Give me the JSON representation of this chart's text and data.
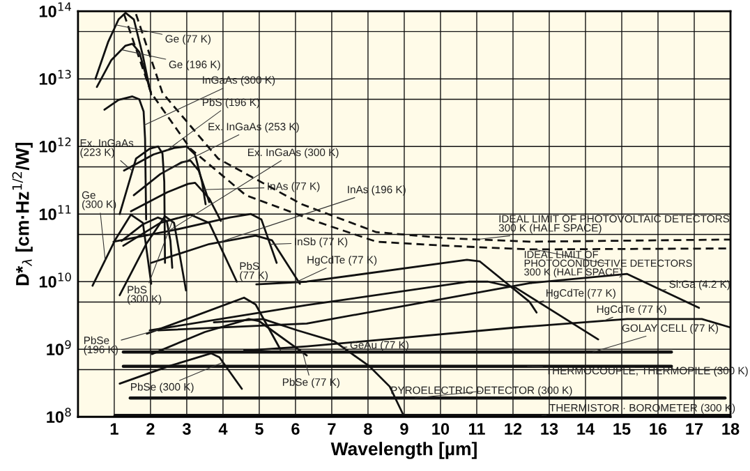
{
  "chart_data": {
    "type": "line",
    "xlabel": "Wavelength [µm]",
    "ylabel": "D*$_{λ}$ [cm·Hz$^{1/2}$/W]",
    "log": "y",
    "grid": true,
    "legend": false,
    "marker": "none",
    "xlim": [
      0,
      18
    ],
    "ylim": [
      100000000.0,
      100000000000000.0
    ],
    "xticks": [
      1,
      2,
      3,
      4,
      5,
      6,
      7,
      8,
      9,
      10,
      11,
      12,
      13,
      14,
      15,
      16,
      17,
      18
    ],
    "yticks": [
      {
        "value": 100000000.0,
        "label": "10$^{8}$"
      },
      {
        "value": 500000000.0,
        "label": null
      },
      {
        "value": 1000000000.0,
        "label": "10$^{9}$"
      },
      {
        "value": 5000000000.0,
        "label": null
      },
      {
        "value": 10000000000.0,
        "label": "10$^{10}$"
      },
      {
        "value": 50000000000.0,
        "label": null
      },
      {
        "value": 100000000000.0,
        "label": "10$^{11}$"
      },
      {
        "value": 500000000000.0,
        "label": null
      },
      {
        "value": 1000000000000.0,
        "label": "10$^{12}$"
      },
      {
        "value": 5000000000000.0,
        "label": null
      },
      {
        "value": 10000000000000.0,
        "label": "10$^{13}$"
      },
      {
        "value": 50000000000000.0,
        "label": null
      },
      {
        "value": 100000000000000.0,
        "label": "10$^{14}$"
      }
    ],
    "series": [
      {
        "name": "Ge (77 K)",
        "color": "#111111",
        "x": [
          0.48,
          0.83,
          1.12,
          1.31,
          1.54,
          1.79,
          1.98
        ],
        "values": [
          10000000000000.0,
          35000000000000.0,
          76000000000000.0,
          95000000000000.0,
          76000000000000.0,
          22000000000000.0,
          7100000000000.0
        ]
      },
      {
        "name": "Ge (196 K)",
        "color": "#111111",
        "x": [
          0.52,
          0.92,
          1.31,
          1.5,
          1.69,
          1.88,
          2.02
        ],
        "values": [
          7600000000000.0,
          19000000000000.0,
          31000000000000.0,
          33000000000000.0,
          25000000000000.0,
          11000000000000.0,
          5900000000000.0
        ]
      },
      {
        "name": "InGaAs (300 K)",
        "color": "#111111",
        "x": [
          0.73,
          1.12,
          1.5,
          1.69,
          1.81,
          1.85,
          1.88
        ],
        "values": [
          3500000000000.0,
          4900000000000.0,
          5500000000000.0,
          5000000000000.0,
          3300000000000.0,
          1300000000000.0,
          83000000000.0
        ]
      },
      {
        "name": "PbS (196 K)",
        "color": "#111111",
        "x": [
          1.27,
          2.08,
          2.65,
          3.0,
          3.23,
          3.42,
          3.52
        ],
        "values": [
          440000000000.0,
          760000000000.0,
          950000000000.0,
          1000000000000.0,
          760000000000.0,
          300000000000.0,
          140000000000.0
        ]
      },
      {
        "name": "Ex. InGaAs\n(223 K)",
        "color": "#111111",
        "x": [
          1.15,
          1.6,
          1.98,
          2.21,
          2.33,
          2.38,
          2.4
        ],
        "values": [
          100000000000.0,
          660000000000.0,
          930000000000.0,
          1000000000000.0,
          790000000000.0,
          300000000000.0,
          19000000000.0
        ]
      },
      {
        "name": "Ex. InGaAs (253 K)",
        "color": "#111111",
        "x": [
          1.54,
          2.27,
          2.85,
          3.1,
          3.33,
          3.62
        ],
        "values": [
          190000000000.0,
          390000000000.0,
          580000000000.0,
          620000000000.0,
          440000000000.0,
          150000000000.0
        ]
      },
      {
        "name": "Ex. InGaAs (300 K)",
        "color": "#111111",
        "x": [
          1.2,
          1.8,
          2.2,
          2.45,
          2.55,
          2.6
        ],
        "values": [
          40000000000.0,
          71000000000.0,
          89000000000.0,
          79000000000.0,
          40000000000.0,
          16000000000.0
        ]
      },
      {
        "name": "Ge\n(300 K)",
        "color": "#111111",
        "x": [
          0.4,
          1.02,
          1.46,
          1.79,
          2.02
        ],
        "values": [
          8700000000.0,
          41000000000.0,
          98000000000.0,
          74000000000.0,
          9300000000.0
        ]
      },
      {
        "name": "InAs (77 K)",
        "color": "#111111",
        "x": [
          1.46,
          2.46,
          3.04,
          3.23,
          3.62,
          3.94
        ],
        "values": [
          110000000000.0,
          210000000000.0,
          280000000000.0,
          290000000000.0,
          170000000000.0,
          79000000000.0
        ]
      },
      {
        "name": "InAs (196 K)",
        "color": "#111111",
        "x": [
          2.02,
          3.62,
          4.9,
          5.35,
          6.12
        ],
        "values": [
          19000000000.0,
          36000000000.0,
          48000000000.0,
          41000000000.0,
          9300000000.0
        ]
      },
      {
        "name": "InSb (77 K)",
        "color": "#111111",
        "x": [
          0.98,
          2.65,
          4.19,
          4.77,
          5.06,
          5.48
        ],
        "values": [
          39000000000.0,
          58000000000.0,
          89000000000.0,
          100000000000.0,
          83000000000.0,
          19000000000.0
        ]
      },
      {
        "name": "PbS\n(300 K)",
        "color": "#111111",
        "x": [
          1.15,
          1.88,
          2.4,
          2.65,
          2.98
        ],
        "values": [
          6300000000.0,
          36000000000.0,
          93000000000.0,
          74000000000.0,
          7400000000.0
        ]
      },
      {
        "name": "PbS\n(77 K)",
        "color": "#111111",
        "x": [
          1.25,
          2.27,
          3.1,
          3.62,
          4.38
        ],
        "values": [
          34000000000.0,
          74000000000.0,
          98000000000.0,
          74000000000.0,
          10000000000.0
        ]
      },
      {
        "name": "HgCdTe (77 K)",
        "color": "#111111",
        "x": [
          4.92,
          6.31,
          10.73,
          11.08,
          12.46,
          12.65
        ],
        "values": [
          9100000000.0,
          10000000000.0,
          21000000000.0,
          20000000000.0,
          5000000000.0,
          3500000000.0
        ]
      },
      {
        "name": "HgCdTe (77 K)",
        "color": "#111111",
        "x": [
          1.98,
          6.31,
          10.79,
          11.31,
          12.08,
          14.35
        ],
        "values": [
          1900000000.0,
          4500000000.0,
          10000000000.0,
          10000000000.0,
          8100000000.0,
          1400000000.0
        ]
      },
      {
        "name": "Si:Ga (4.2 K)",
        "color": "#111111",
        "x": [
          2.21,
          6.31,
          12.46,
          15.15,
          17.13
        ],
        "values": [
          1900000000.0,
          2400000000.0,
          9500000000.0,
          13000000000.0,
          4100000000.0
        ]
      },
      {
        "name": "HgCdTe (77 K)",
        "color": "#111111",
        "x": [
          4.58,
          6.31,
          12.08,
          15.15,
          17.21,
          18.0
        ],
        "values": [
          950000000.0,
          1100000000.0,
          2100000000.0,
          2800000000.0,
          2800000000.0,
          2100000000.0
        ]
      },
      {
        "name": "GeAu (77 K)",
        "color": "#111111",
        "x": [
          3.75,
          5.1,
          6.06,
          7.08,
          8.04,
          8.6,
          9.0
        ],
        "values": [
          2500000000.0,
          2800000000.0,
          1900000000.0,
          1300000000.0,
          560000000.0,
          280000000.0,
          100000000.0
        ]
      },
      {
        "name": "PbSe\n(196 K)",
        "color": "#111111",
        "x": [
          1.9,
          3.0,
          4.58,
          4.9,
          5.58
        ],
        "values": [
          1700000000.0,
          2800000000.0,
          5800000000.0,
          4600000000.0,
          1000000000.0
        ]
      },
      {
        "name": "PbSe (300 K)",
        "color": "#111111",
        "x": [
          1.15,
          2.5,
          3.67,
          3.9,
          4.52
        ],
        "values": [
          310000000.0,
          560000000.0,
          870000000.0,
          760000000.0,
          260000000.0
        ]
      },
      {
        "name": "PbSe (77 K)",
        "color": "#111111",
        "x": [
          2.04,
          3.5,
          4.71,
          5.0,
          6.31
        ],
        "values": [
          850000000.0,
          1800000000.0,
          2800000000.0,
          2600000000.0,
          810000000.0
        ]
      },
      {
        "name": "GOLAY CELL (77 K)",
        "color": "#111111",
        "x": [
          1.25,
          16.37
        ],
        "values": [
          910000000.0,
          910000000.0
        ]
      },
      {
        "name": "THERMOCOUPLE, THERMOPILE (300 K)",
        "color": "#111111",
        "x": [
          1.25,
          16.37
        ],
        "values": [
          560000000.0,
          560000000.0
        ]
      },
      {
        "name": "PYROELECTRIC DETECTOR (300 K)",
        "color": "#111111",
        "x": [
          1.44,
          17.85
        ],
        "values": [
          190000000.0,
          190000000.0
        ]
      },
      {
        "name": "THERMISTOR · BOROMETER (300 K)",
        "color": "#111111",
        "x": [
          1.02,
          18.0
        ],
        "values": [
          105000000.0,
          105000000.0
        ]
      },
      {
        "name": "IDEAL LIMIT OF PHOTOVOLTAIC DETECTORS\n300 K (HALF SPACE)",
        "color": "#111111",
        "line_style": "dashed",
        "x": [
          1.6,
          2.33,
          3.87,
          6.17,
          8.23,
          10.15,
          12.46,
          18.0
        ],
        "values": [
          91000000000000.0,
          6200000000000.0,
          660000000000.0,
          140000000000.0,
          54000000000.0,
          44000000000.0,
          39000000000.0,
          42000000000.0
        ]
      },
      {
        "name": "IDEAL LIMIT OF\nPHOTOCONDUCTIVE DETECTORS\n300 K (HALF SPACE)",
        "color": "#111111",
        "line_style": "dashed",
        "x": [
          1.27,
          2.02,
          3.1,
          4.63,
          6.69,
          8.23,
          10.15,
          12.46,
          18.0
        ],
        "values": [
          91000000000000.0,
          6200000000000.0,
          930000000000.0,
          190000000000.0,
          74000000000.0,
          39000000000.0,
          34000000000.0,
          30000000000.0,
          31000000000.0
        ]
      }
    ]
  }
}
